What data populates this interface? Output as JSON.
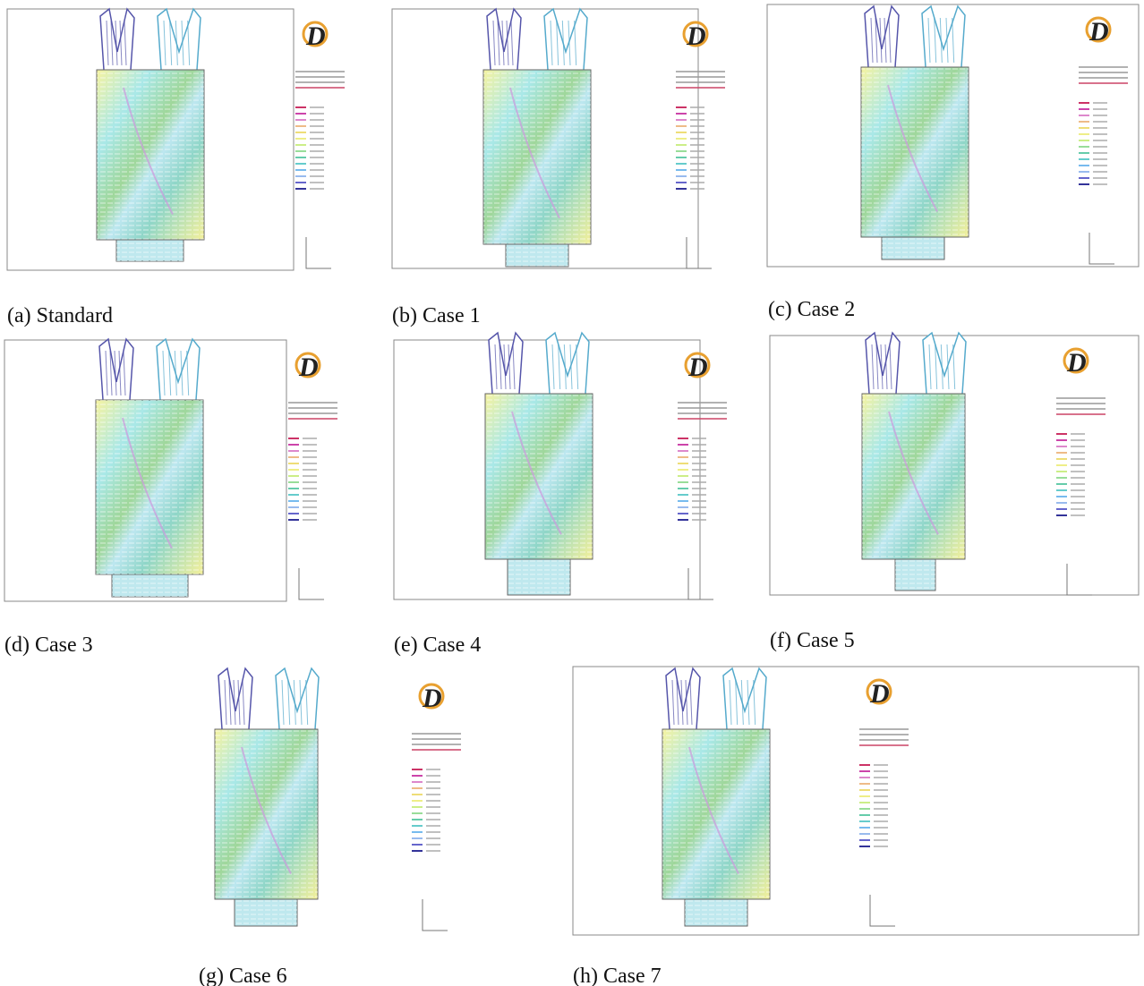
{
  "panels": [
    {
      "caption": "(a) Standard"
    },
    {
      "caption": "(b) Case 1"
    },
    {
      "caption": "(c) Case 2"
    },
    {
      "caption": "(d) Case 3"
    },
    {
      "caption": "(e) Case 4"
    },
    {
      "caption": "(f) Case 5"
    },
    {
      "caption": "(g) Case 6"
    },
    {
      "caption": "(h) Case 7"
    }
  ]
}
